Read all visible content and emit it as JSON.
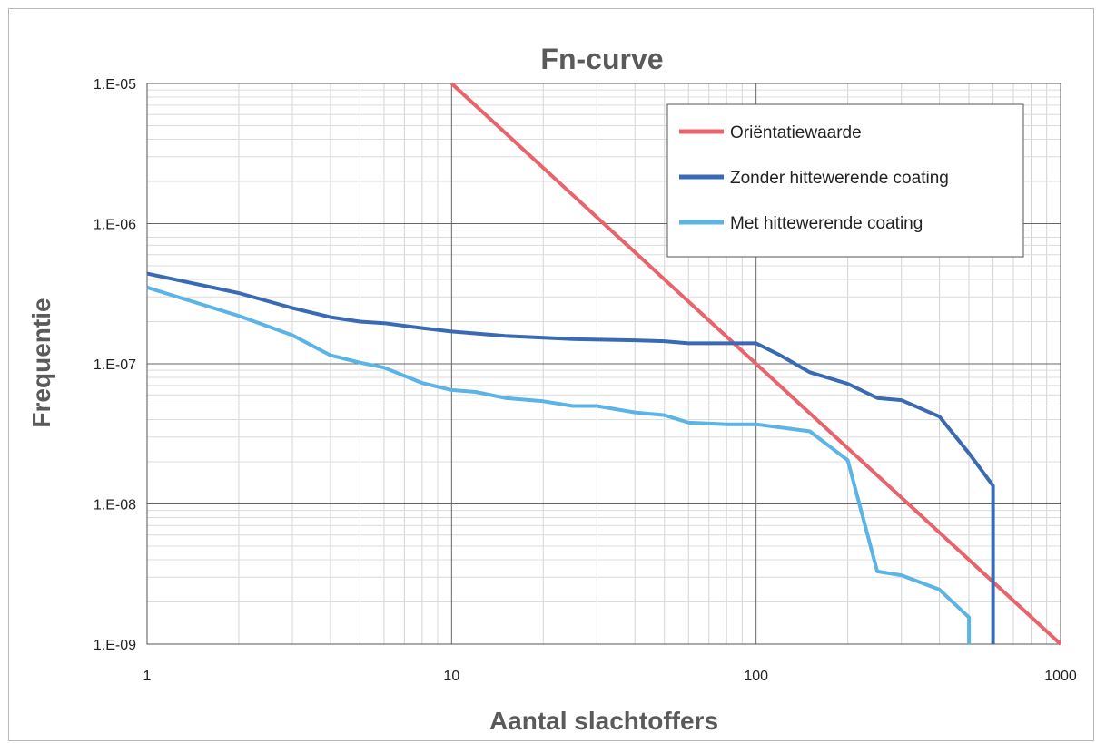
{
  "chart_data": {
    "type": "line",
    "title": "Fn-curve",
    "xlabel": "Aantal slachtoffers",
    "ylabel": "Frequentie",
    "xscale": "log",
    "yscale": "log",
    "xlim": [
      1,
      1000
    ],
    "ylim": [
      1e-09,
      1e-05
    ],
    "x_ticks": [
      {
        "value": 1,
        "label": "1"
      },
      {
        "value": 10,
        "label": "10"
      },
      {
        "value": 100,
        "label": "100"
      },
      {
        "value": 1000,
        "label": "1000"
      }
    ],
    "y_ticks": [
      {
        "value": 1e-09,
        "label": "1.E-09"
      },
      {
        "value": 1e-08,
        "label": "1.E-08"
      },
      {
        "value": 1e-07,
        "label": "1.E-07"
      },
      {
        "value": 1e-06,
        "label": "1.E-06"
      },
      {
        "value": 1e-05,
        "label": "1.E-05"
      }
    ],
    "grid": true,
    "legend_position": "top-right",
    "series": [
      {
        "name": "Oriëntatiewaarde",
        "color": "#e8636b",
        "points": [
          [
            10,
            1e-05
          ],
          [
            1000,
            1e-09
          ]
        ]
      },
      {
        "name": "Zonder hittewerende coating",
        "color": "#3a6ab3",
        "points": [
          [
            1,
            4.4e-07
          ],
          [
            2,
            3.2e-07
          ],
          [
            3,
            2.5e-07
          ],
          [
            4,
            2.15e-07
          ],
          [
            5,
            2e-07
          ],
          [
            6,
            1.95e-07
          ],
          [
            8,
            1.8e-07
          ],
          [
            10,
            1.7e-07
          ],
          [
            15,
            1.58e-07
          ],
          [
            25,
            1.5e-07
          ],
          [
            40,
            1.47e-07
          ],
          [
            50,
            1.45e-07
          ],
          [
            60,
            1.4e-07
          ],
          [
            80,
            1.4e-07
          ],
          [
            100,
            1.4e-07
          ],
          [
            120,
            1.15e-07
          ],
          [
            150,
            8.7e-08
          ],
          [
            200,
            7.2e-08
          ],
          [
            250,
            5.7e-08
          ],
          [
            300,
            5.5e-08
          ],
          [
            400,
            4.2e-08
          ],
          [
            500,
            2.3e-08
          ],
          [
            600,
            1.35e-08
          ],
          [
            600,
            1e-09
          ]
        ]
      },
      {
        "name": "Met hittewerende coating",
        "color": "#5ab4e6",
        "points": [
          [
            1,
            3.5e-07
          ],
          [
            2,
            2.2e-07
          ],
          [
            3,
            1.6e-07
          ],
          [
            4,
            1.15e-07
          ],
          [
            5,
            1.02e-07
          ],
          [
            6,
            9.4e-08
          ],
          [
            8,
            7.3e-08
          ],
          [
            10,
            6.5e-08
          ],
          [
            12,
            6.3e-08
          ],
          [
            15,
            5.7e-08
          ],
          [
            20,
            5.4e-08
          ],
          [
            25,
            5e-08
          ],
          [
            30,
            5e-08
          ],
          [
            40,
            4.5e-08
          ],
          [
            50,
            4.3e-08
          ],
          [
            60,
            3.8e-08
          ],
          [
            80,
            3.7e-08
          ],
          [
            100,
            3.7e-08
          ],
          [
            150,
            3.3e-08
          ],
          [
            200,
            2.05e-08
          ],
          [
            250,
            3.3e-09
          ],
          [
            300,
            3.1e-09
          ],
          [
            400,
            2.45e-09
          ],
          [
            500,
            1.55e-09
          ],
          [
            500,
            1e-09
          ]
        ]
      }
    ]
  }
}
